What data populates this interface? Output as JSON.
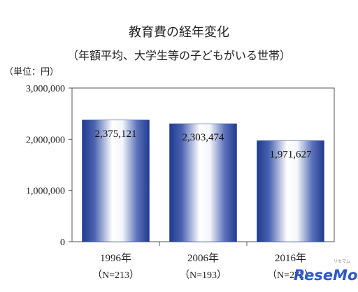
{
  "chart_data": {
    "type": "bar",
    "title": "教育費の経年変化",
    "subtitle": "（年額平均、大学生等の子どもがいる世帯）",
    "unit_label": "（単位：円）",
    "categories": [
      "1996年",
      "2006年",
      "2016年"
    ],
    "category_sublabels": [
      "（N=213）",
      "（N=193）",
      "（N=272）"
    ],
    "values": [
      2375121,
      2303474,
      1971627
    ],
    "value_labels": [
      "2,375,121",
      "2,303,474",
      "1,971,627"
    ],
    "ylim": [
      0,
      3000000
    ],
    "yticks": [
      0,
      1000000,
      2000000,
      3000000
    ],
    "ytick_labels": [
      "0",
      "1,000,000",
      "2,000,000",
      "3,000,000"
    ],
    "grid": false,
    "bar_style": "blue-to-white horizontal cylinder gradient",
    "colors": {
      "bar_edge": "#1f3a8f",
      "bar_center": "#ffffff",
      "axis": "#555555"
    }
  },
  "watermark": "ReseMom",
  "watermark_small": "リセマム"
}
